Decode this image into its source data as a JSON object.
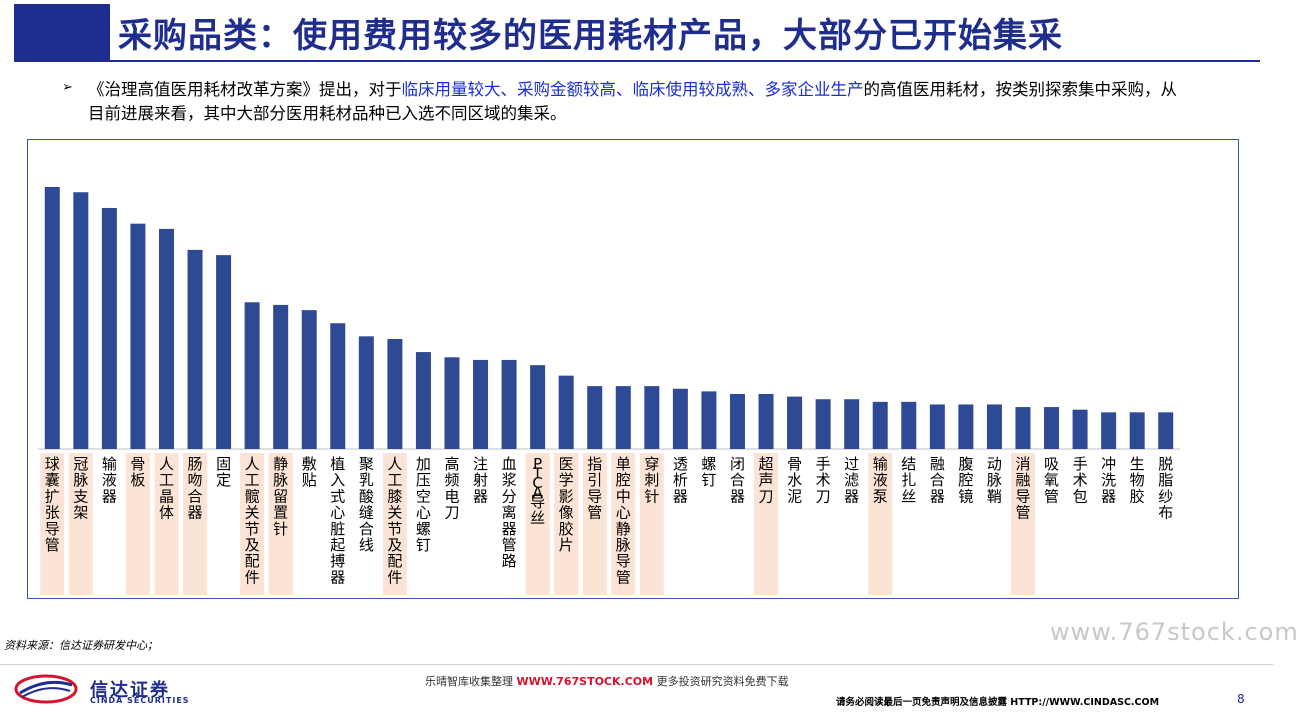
{
  "header": {
    "title": "采购品类：使用费用较多的医用耗材产品，大部分已开始集采"
  },
  "intro": {
    "bullet": "➢",
    "part1": "《治理高值医用耗材改革方案》提出，对于",
    "highlight": "临床用量较大、采购金额较高、临床使用较成熟、多家企业生产",
    "part2": "的高值医用耗材，按类别探索集中采购，从目前进展来看，其中大部分医用耗材品种已入选不同区域的集采。"
  },
  "colors": {
    "bar": "#2e4a94",
    "highlight_bg": "#fbe4d5",
    "frame": "#3a56a8",
    "title": "#1f2d8e"
  },
  "chart_data": {
    "type": "bar",
    "title": "",
    "xlabel": "",
    "ylabel": "",
    "ylim": [
      0,
      100
    ],
    "categories": [
      "球囊扩张导管",
      "冠脉支架",
      "输液器",
      "骨板",
      "人工晶体",
      "肠吻合器",
      "固定",
      "人工髋关节及配件",
      "静脉留置针",
      "敷贴",
      "植入式心脏起搏器",
      "聚乳酸缝合线",
      "人工膝关节及配件",
      "加压空心螺钉",
      "高频电刀",
      "注射器",
      "血浆分离器管路",
      "PTCA导丝",
      "医学影像胶片",
      "指引导管",
      "单腔中心静脉导管",
      "穿刺针",
      "透析器",
      "螺钉",
      "闭合器",
      "超声刀",
      "骨水泥",
      "手术刀",
      "过滤器",
      "输液泵",
      "结扎丝",
      "融合器",
      "腹腔镜",
      "动脉鞘",
      "消融导管",
      "吸氧管",
      "手术包",
      "冲洗器",
      "生物胶",
      "脱脂纱布"
    ],
    "values": [
      100,
      98,
      92,
      86,
      84,
      76,
      74,
      56,
      55,
      53,
      48,
      43,
      42,
      37,
      35,
      34,
      34,
      32,
      28,
      24,
      24,
      24,
      23,
      22,
      21,
      21,
      20,
      19,
      19,
      18,
      18,
      17,
      17,
      17,
      16,
      16,
      15,
      14,
      14,
      14
    ],
    "highlighted": [
      true,
      true,
      false,
      true,
      true,
      true,
      false,
      true,
      true,
      false,
      false,
      false,
      true,
      false,
      false,
      false,
      false,
      true,
      true,
      true,
      true,
      true,
      false,
      false,
      false,
      true,
      false,
      false,
      false,
      true,
      false,
      false,
      false,
      false,
      true,
      false,
      false,
      false,
      false,
      false
    ]
  },
  "source": "资料来源：信达证券研发中心；",
  "watermark": "www.767stock.com",
  "footer": {
    "logo_cn": "信达证券",
    "logo_en": "CINDA SECURITIES",
    "center_prefix": "乐晴智库收集整理 ",
    "center_url": "WWW.767STOCK.COM",
    "center_suffix": " 更多投资研究资料免费下载",
    "disclaimer": "请务必阅读最后一页免责声明及信息披露  HTTP://WWW.CINDASC.COM",
    "page": "8"
  }
}
